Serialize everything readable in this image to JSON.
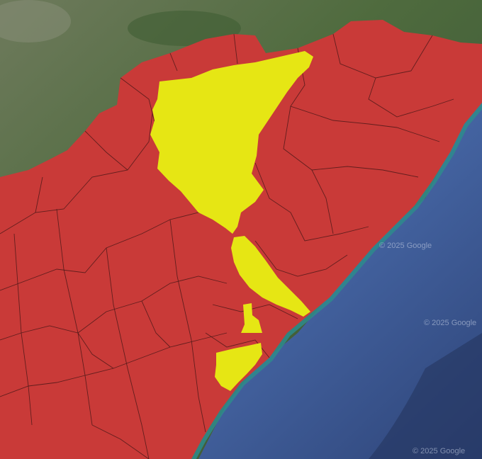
{
  "map": {
    "basemap": "satellite",
    "colors": {
      "land_green": "#4d6b3c",
      "land_dark": "#2f4a2a",
      "ocean": "#4b6aa5",
      "ocean_deep": "#2b3f74",
      "coast_teal": "#2f8a8c",
      "region_red": "#c93a38",
      "highlight_yellow": "#e6e614",
      "border_line": "#3a1414"
    },
    "watermarks": [
      "© 2025 Google",
      "© 2025 Google",
      "© 2025 Google"
    ],
    "legend": []
  }
}
